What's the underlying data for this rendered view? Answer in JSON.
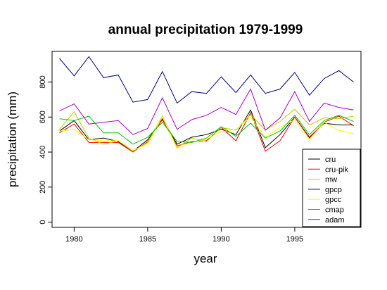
{
  "chart_data": {
    "type": "line",
    "title": "annual precipitation 1979-1999",
    "xlabel": "year",
    "ylabel": "precipitation (mm)",
    "xlim": [
      1978.5,
      1999.5
    ],
    "ylim": [
      -30,
      975
    ],
    "x_ticks": [
      1980,
      1985,
      1990,
      1995
    ],
    "y_ticks": [
      0,
      200,
      400,
      600,
      800
    ],
    "legend_position": "bottom-right",
    "grid": false,
    "x": [
      1979,
      1980,
      1981,
      1982,
      1983,
      1984,
      1985,
      1986,
      1987,
      1988,
      1989,
      1990,
      1991,
      1992,
      1993,
      1994,
      1995,
      1996,
      1997,
      1998,
      1999
    ],
    "series": [
      {
        "name": "cru",
        "color": "#000000",
        "values": [
          520,
          580,
          470,
          480,
          460,
          405,
          470,
          590,
          445,
          485,
          500,
          530,
          500,
          640,
          425,
          500,
          600,
          485,
          565,
          555,
          555
        ]
      },
      {
        "name": "cru-pik",
        "color": "#ff0000",
        "values": [
          510,
          560,
          455,
          455,
          455,
          400,
          460,
          585,
          435,
          460,
          465,
          540,
          465,
          625,
          405,
          465,
          600,
          480,
          570,
          605,
          550
        ]
      },
      {
        "name": "mw",
        "color": "#c8c800",
        "values": [
          530,
          630,
          480,
          445,
          465,
          405,
          455,
          605,
          425,
          480,
          460,
          540,
          525,
          615,
          525,
          575,
          645,
          555,
          595,
          590,
          605
        ]
      },
      {
        "name": "gpcp",
        "color": "#000080",
        "values": [
          935,
          835,
          945,
          825,
          840,
          685,
          700,
          860,
          680,
          745,
          735,
          830,
          740,
          840,
          735,
          760,
          855,
          725,
          820,
          865,
          800
        ]
      },
      {
        "name": "gpcc",
        "color": "#ffff00",
        "values": [
          520,
          530,
          470,
          465,
          465,
          410,
          445,
          600,
          420,
          455,
          475,
          515,
          530,
          600,
          485,
          540,
          585,
          470,
          570,
          525,
          505
        ]
      },
      {
        "name": "cmap",
        "color": "#00c800",
        "values": [
          590,
          580,
          605,
          510,
          510,
          445,
          485,
          570,
          460,
          455,
          480,
          545,
          490,
          565,
          480,
          520,
          610,
          500,
          580,
          610,
          575
        ]
      },
      {
        "name": "adam",
        "color": "#a000c8",
        "values": [
          635,
          675,
          560,
          570,
          580,
          500,
          535,
          710,
          530,
          585,
          610,
          655,
          615,
          760,
          525,
          595,
          745,
          575,
          680,
          655,
          640
        ]
      }
    ]
  }
}
